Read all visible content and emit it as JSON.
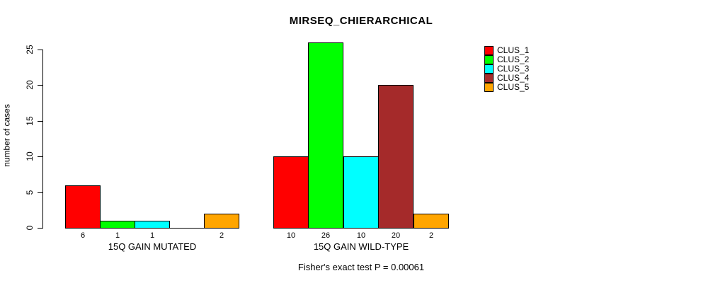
{
  "chart_data": {
    "type": "bar",
    "title": "MIRSEQ_CHIERARCHICAL",
    "ylabel": "number of cases",
    "xlabel": "",
    "ylim": [
      0,
      26
    ],
    "yticks": [
      0,
      5,
      10,
      15,
      20,
      25
    ],
    "grid": false,
    "categories": [
      "15Q GAIN MUTATED",
      "15Q GAIN WILD-TYPE"
    ],
    "series": [
      {
        "name": "CLUS_1",
        "color": "#FF0000",
        "values": [
          6,
          10
        ]
      },
      {
        "name": "CLUS_2",
        "color": "#00FF00",
        "values": [
          1,
          26
        ]
      },
      {
        "name": "CLUS_3",
        "color": "#00FFFF",
        "values": [
          1,
          10
        ]
      },
      {
        "name": "CLUS_4",
        "color": "#A52A2A",
        "values": [
          0,
          20
        ]
      },
      {
        "name": "CLUS_5",
        "color": "#FFA500",
        "values": [
          2,
          2
        ]
      }
    ],
    "bar_value_labels_shown": true,
    "zero_values_unlabeled": true,
    "legend_position": "top-right",
    "annotation": "Fisher's exact test P = 0.00061"
  }
}
